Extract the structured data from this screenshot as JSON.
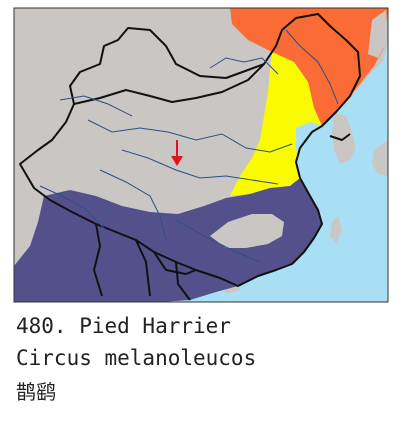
{
  "species": {
    "number_line": "480. Pied Harrier",
    "scientific_name": "Circus melanoleucos",
    "chinese_name": "鹊鹞"
  },
  "legend_colors": {
    "sea": "#a9dff5",
    "land_outside": "#c9c6c3",
    "breeding_range": "#fb6b36",
    "migration_range": "#fbfb00",
    "wintering_range": "#54508c",
    "vagrant_marker": "#e0141e",
    "borders": "#111111",
    "rivers": "#2c4f86"
  },
  "map": {
    "marker_icon": "red-arrow-icon",
    "ranges": [
      "breeding",
      "passage",
      "wintering"
    ]
  }
}
